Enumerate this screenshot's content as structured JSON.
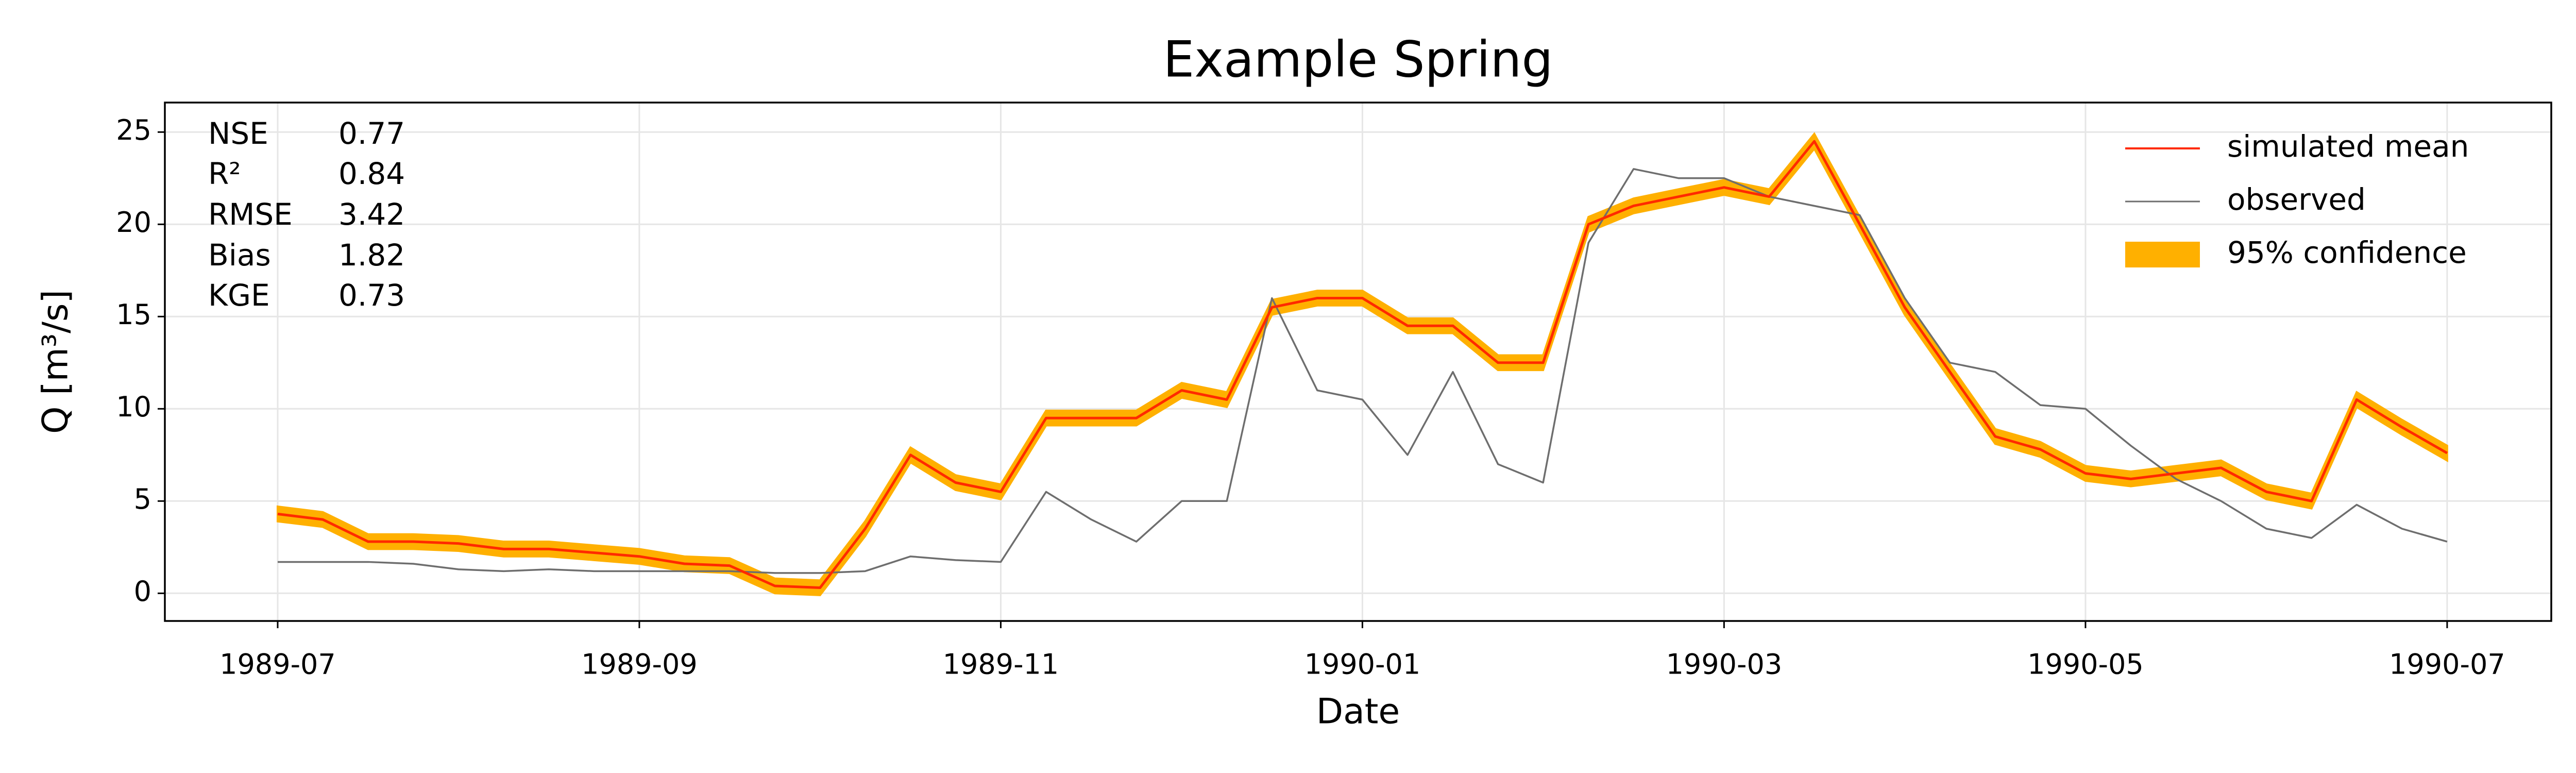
{
  "chart_data": {
    "type": "line",
    "title": "Example Spring",
    "xlabel": "Date",
    "ylabel": "Q [m³/s]",
    "x": [
      1989.5,
      1989.5208,
      1989.5417,
      1989.5625,
      1989.5833,
      1989.6042,
      1989.625,
      1989.6458,
      1989.6667,
      1989.6875,
      1989.7083,
      1989.7292,
      1989.75,
      1989.7708,
      1989.7917,
      1989.8125,
      1989.8333,
      1989.8542,
      1989.875,
      1989.8958,
      1989.9167,
      1989.9375,
      1989.9583,
      1989.9792,
      1990.0,
      1990.0208,
      1990.0417,
      1990.0625,
      1990.0833,
      1990.1042,
      1990.125,
      1990.1458,
      1990.1667,
      1990.1875,
      1990.2083,
      1990.2292,
      1990.25,
      1990.2708,
      1990.2917,
      1990.3125,
      1990.3333,
      1990.3542,
      1990.375,
      1990.3958,
      1990.4167,
      1990.4375,
      1990.4583,
      1990.4792,
      1990.5
    ],
    "series": [
      {
        "name": "simulated mean",
        "color": "#ff2a00",
        "values": [
          4.3,
          4.0,
          2.8,
          2.8,
          2.7,
          2.4,
          2.4,
          2.2,
          2.0,
          1.6,
          1.5,
          0.4,
          0.3,
          3.5,
          7.5,
          6.0,
          5.5,
          9.5,
          9.5,
          9.5,
          11,
          10.5,
          15.5,
          16,
          16,
          14.5,
          14.5,
          12.5,
          12.5,
          20,
          21,
          21.5,
          22,
          21.5,
          24.5,
          20,
          15.5,
          12,
          8.5,
          7.8,
          6.5,
          6.2,
          6.5,
          6.8,
          5.5,
          5.0,
          10.5,
          9.0,
          7.6
        ]
      },
      {
        "name": "observed",
        "color": "#6e6e6e",
        "values": [
          1.7,
          1.7,
          1.7,
          1.6,
          1.3,
          1.2,
          1.3,
          1.2,
          1.2,
          1.2,
          1.2,
          1.1,
          1.1,
          1.2,
          2.0,
          1.8,
          1.7,
          5.5,
          4.0,
          2.8,
          5.0,
          5.0,
          16,
          11,
          10.5,
          7.5,
          12,
          7,
          6,
          19,
          23,
          22.5,
          22.5,
          21.5,
          21,
          20.5,
          16,
          12.5,
          12,
          10.2,
          10,
          8,
          6.2,
          5,
          3.5,
          3,
          4.8,
          3.5,
          2.8
        ]
      }
    ],
    "band": {
      "name": "95% confidence",
      "color": "#ffb000",
      "lower": [
        3.9,
        3.6,
        2.4,
        2.4,
        2.3,
        2.0,
        2.0,
        1.8,
        1.6,
        1.2,
        1.1,
        0.0,
        -0.1,
        3.1,
        7.1,
        5.6,
        5.1,
        9.1,
        9.1,
        9.1,
        10.6,
        10.1,
        15.1,
        15.6,
        15.6,
        14.1,
        14.1,
        12.1,
        12.1,
        19.6,
        20.6,
        21.1,
        21.6,
        21.1,
        24.1,
        19.6,
        15.1,
        11.6,
        8.1,
        7.4,
        6.1,
        5.8,
        6.1,
        6.4,
        5.1,
        4.6,
        10.1,
        8.6,
        7.2
      ],
      "upper": [
        4.7,
        4.4,
        3.2,
        3.2,
        3.1,
        2.8,
        2.8,
        2.6,
        2.4,
        2.0,
        1.9,
        0.8,
        0.7,
        3.9,
        7.9,
        6.4,
        5.9,
        9.9,
        9.9,
        9.9,
        11.4,
        10.9,
        15.9,
        16.4,
        16.4,
        14.9,
        14.9,
        12.9,
        12.9,
        20.4,
        21.4,
        21.9,
        22.4,
        21.9,
        24.9,
        20.4,
        15.9,
        12.4,
        8.9,
        8.2,
        6.9,
        6.6,
        6.9,
        7.2,
        5.9,
        5.4,
        10.9,
        9.4,
        8.0
      ]
    },
    "xlim": [
      1989.448,
      1990.548
    ],
    "xticks": [
      {
        "value": 1989.5,
        "label": "1989-07"
      },
      {
        "value": 1989.6667,
        "label": "1989-09"
      },
      {
        "value": 1989.8333,
        "label": "1989-11"
      },
      {
        "value": 1990.0,
        "label": "1990-01"
      },
      {
        "value": 1990.1667,
        "label": "1990-03"
      },
      {
        "value": 1990.3333,
        "label": "1990-05"
      },
      {
        "value": 1990.5,
        "label": "1990-07"
      }
    ],
    "ylim": [
      -1.5,
      26.6
    ],
    "yticks": [
      0,
      5,
      10,
      15,
      20,
      25
    ],
    "grid": true,
    "legend": "upper right",
    "stats": [
      [
        "NSE",
        "0.77"
      ],
      [
        "R²",
        "0.84"
      ],
      [
        "RMSE",
        "3.42"
      ],
      [
        "Bias",
        "1.82"
      ],
      [
        "KGE",
        "0.73"
      ]
    ]
  }
}
